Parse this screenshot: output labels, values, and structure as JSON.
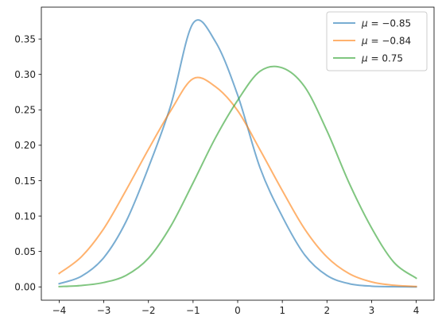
{
  "chart_data": {
    "type": "line",
    "title": "",
    "xlabel": "",
    "ylabel": "",
    "xlim": [
      -4.4,
      4.4
    ],
    "ylim": [
      -0.0188,
      0.395
    ],
    "x_ticks": [
      -4,
      -3,
      -2,
      -1,
      0,
      1,
      2,
      3,
      4
    ],
    "x_tick_labels": [
      "−4",
      "−3",
      "−2",
      "−1",
      "0",
      "1",
      "2",
      "3",
      "4"
    ],
    "y_ticks": [
      0.0,
      0.05,
      0.1,
      0.15,
      0.2,
      0.25,
      0.3,
      0.35
    ],
    "y_tick_labels": [
      "0.00",
      "0.05",
      "0.10",
      "0.15",
      "0.20",
      "0.25",
      "0.30",
      "0.35"
    ],
    "grid": false,
    "legend_position": "top-right",
    "x": [
      -4.0,
      -3.5,
      -3.0,
      -2.5,
      -2.0,
      -1.5,
      -1.0,
      -0.5,
      0.0,
      0.5,
      1.0,
      1.5,
      2.0,
      2.5,
      3.0,
      3.5,
      4.0
    ],
    "series": [
      {
        "name": "μ = −0.85",
        "legend_prefix": "μ",
        "legend_value": " = −0.85",
        "color": "#1f77b4",
        "values": [
          0.0045,
          0.0151,
          0.0414,
          0.0925,
          0.1686,
          0.2563,
          0.3722,
          0.3464,
          0.2707,
          0.1683,
          0.0993,
          0.0453,
          0.0161,
          0.0045,
          0.001,
          0.0002,
          3e-05
        ]
      },
      {
        "name": "μ = −0.84",
        "legend_prefix": "μ",
        "legend_value": " = −0.84",
        "color": "#ff7f0e",
        "values": [
          0.019,
          0.0427,
          0.0824,
          0.1367,
          0.1943,
          0.2489,
          0.294,
          0.2828,
          0.2488,
          0.1936,
          0.136,
          0.0818,
          0.0422,
          0.0186,
          0.007,
          0.0023,
          0.0006
        ]
      },
      {
        "name": "μ = 0.75",
        "legend_prefix": "μ",
        "legend_value": " = 0.75",
        "color": "#2ca02c",
        "values": [
          0.0004,
          0.002,
          0.0062,
          0.0163,
          0.0404,
          0.0857,
          0.1469,
          0.2103,
          0.2635,
          0.3045,
          0.3093,
          0.2826,
          0.2204,
          0.1463,
          0.0833,
          0.0347,
          0.0123
        ]
      }
    ]
  }
}
